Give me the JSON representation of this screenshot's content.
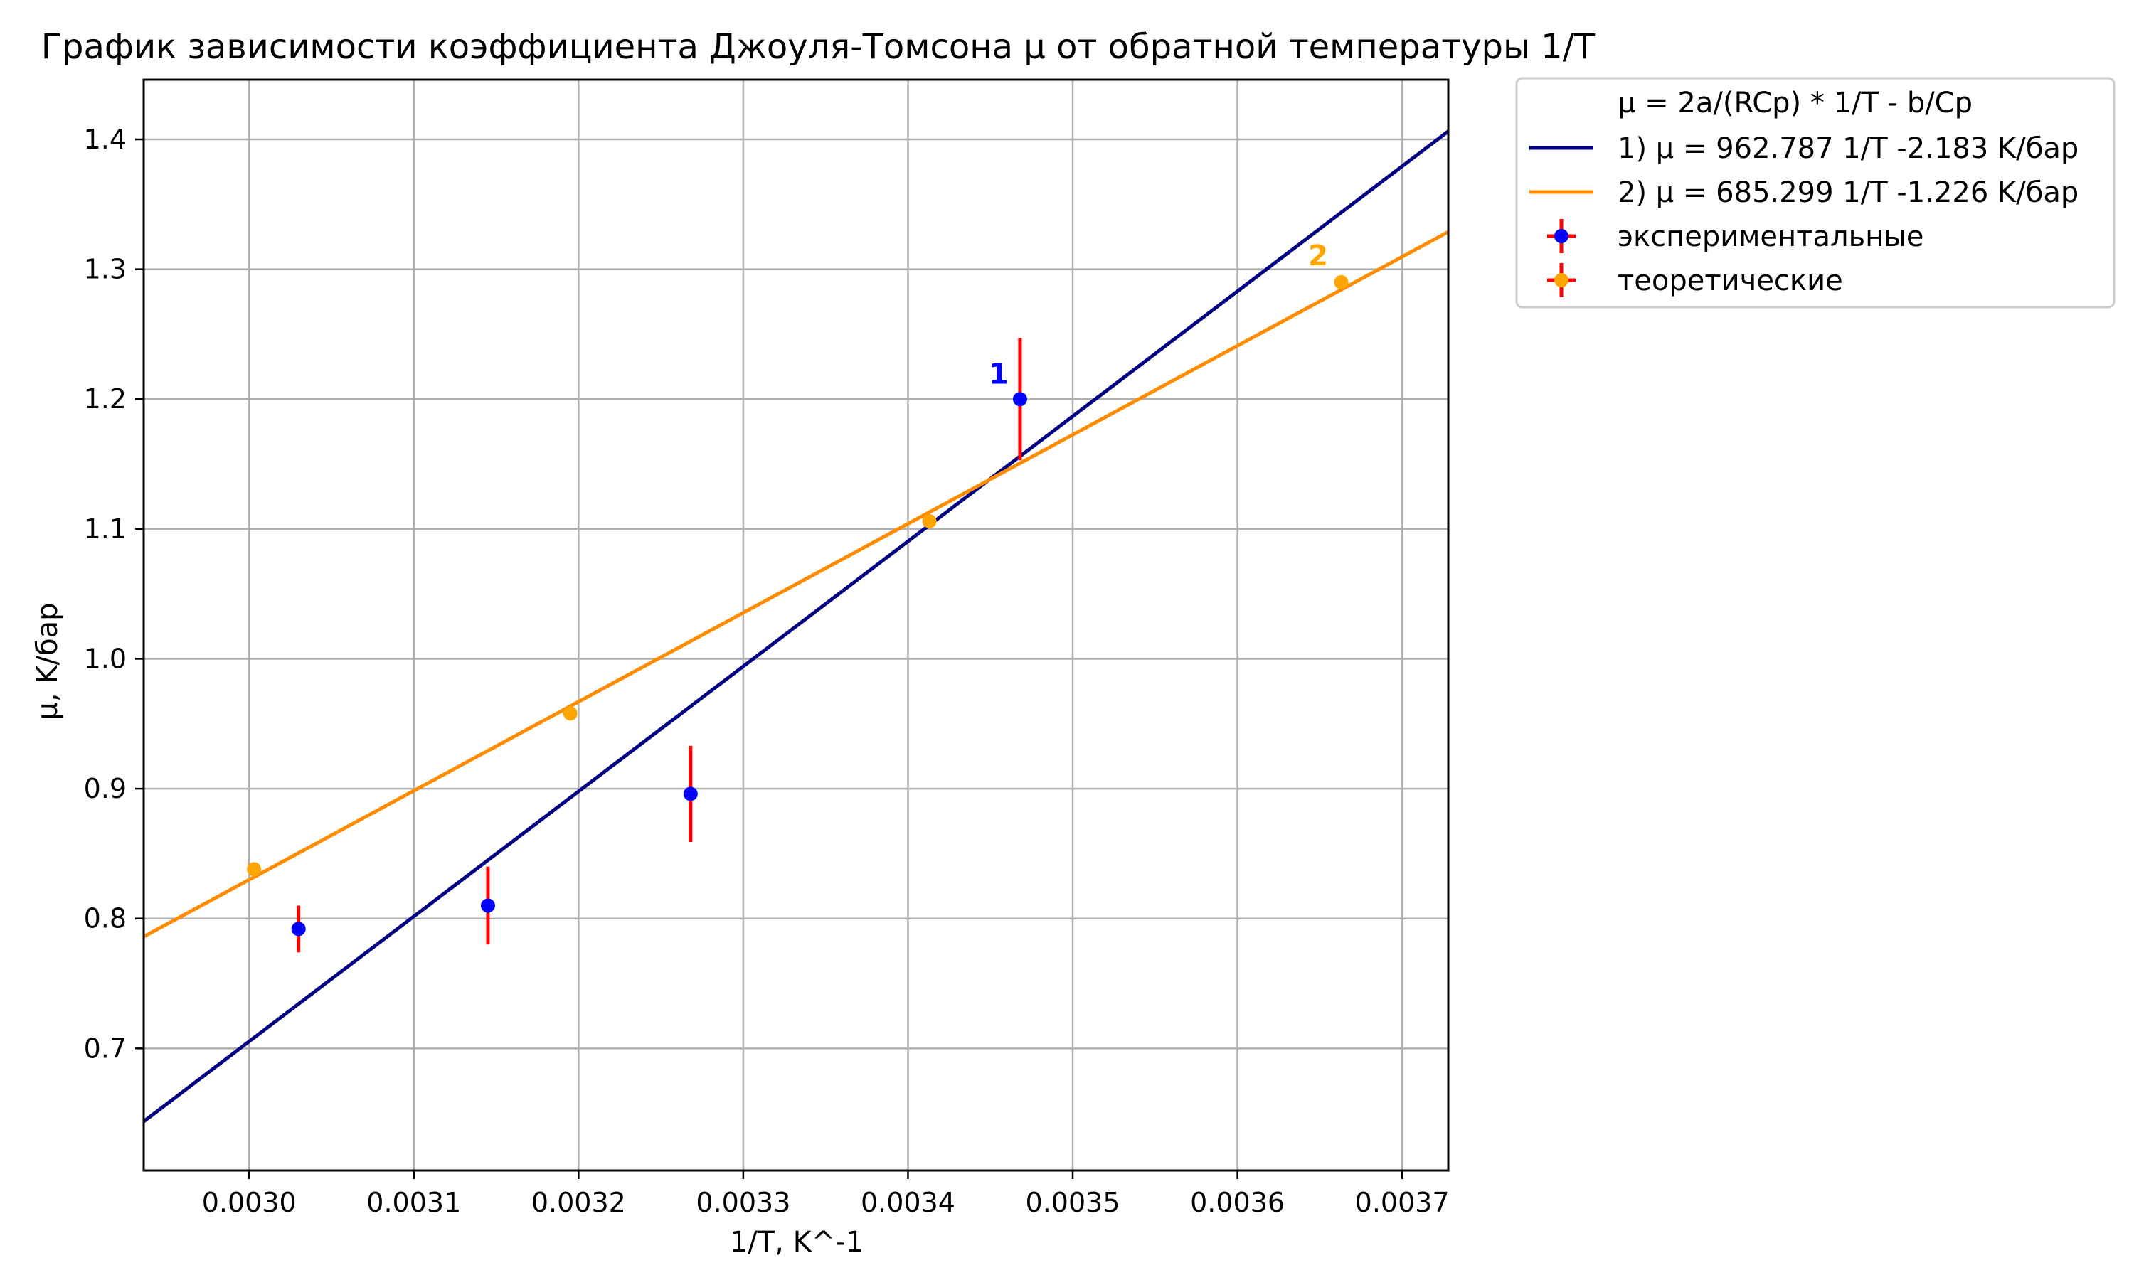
{
  "chart_data": {
    "type": "line",
    "title": "График зависимости коэффициента Джоуля-Томсона μ от обратной температуры 1/T",
    "xlabel": "1/T, K^-1",
    "ylabel": "μ, K/бар",
    "xlim": [
      0.002936,
      0.003728
    ],
    "ylim": [
      0.606,
      1.446
    ],
    "x_ticks": [
      0.003,
      0.0031,
      0.0032,
      0.0033,
      0.0034,
      0.0035,
      0.0036,
      0.0037
    ],
    "x_tick_labels": [
      "0.0030",
      "0.0031",
      "0.0032",
      "0.0033",
      "0.0034",
      "0.0035",
      "0.0036",
      "0.0037"
    ],
    "y_ticks": [
      0.7,
      0.8,
      0.9,
      1.0,
      1.1,
      1.2,
      1.3,
      1.4
    ],
    "y_tick_labels": [
      "0.7",
      "0.8",
      "0.9",
      "1.0",
      "1.1",
      "1.2",
      "1.3",
      "1.4"
    ],
    "grid": true,
    "legend_position": "outside-right-top",
    "legend_header": "μ = 2a/(RCp) * 1/T - b/Cp",
    "lines": [
      {
        "label": "1) μ = 962.787 1/T -2.183 K/бар",
        "slope": 962.787,
        "intercept": -2.183,
        "color": "#000080"
      },
      {
        "label": "2) μ = 685.299 1/T -1.226 K/бар",
        "slope": 685.299,
        "intercept": -1.226,
        "color": "#ff8c00"
      }
    ],
    "series": [
      {
        "name": "экспериментальные",
        "type": "errorbar",
        "color": "#0000ff",
        "errcolor": "#ff0000",
        "x": [
          0.00303,
          0.003145,
          0.003268,
          0.003468
        ],
        "y": [
          0.792,
          0.81,
          0.896,
          1.2
        ],
        "yerr": [
          0.018,
          0.03,
          0.037,
          0.047
        ]
      },
      {
        "name": "теоретические",
        "type": "scatter",
        "color": "#ffa500",
        "x": [
          0.003003,
          0.003195,
          0.003413,
          0.003663
        ],
        "y": [
          0.838,
          0.958,
          1.106,
          1.29
        ]
      }
    ],
    "annotations": [
      {
        "text": "1",
        "x": 0.003461,
        "y": 1.212,
        "color": "#0000ff"
      },
      {
        "text": "2",
        "x": 0.003655,
        "y": 1.303,
        "color": "#ffa500"
      }
    ]
  }
}
